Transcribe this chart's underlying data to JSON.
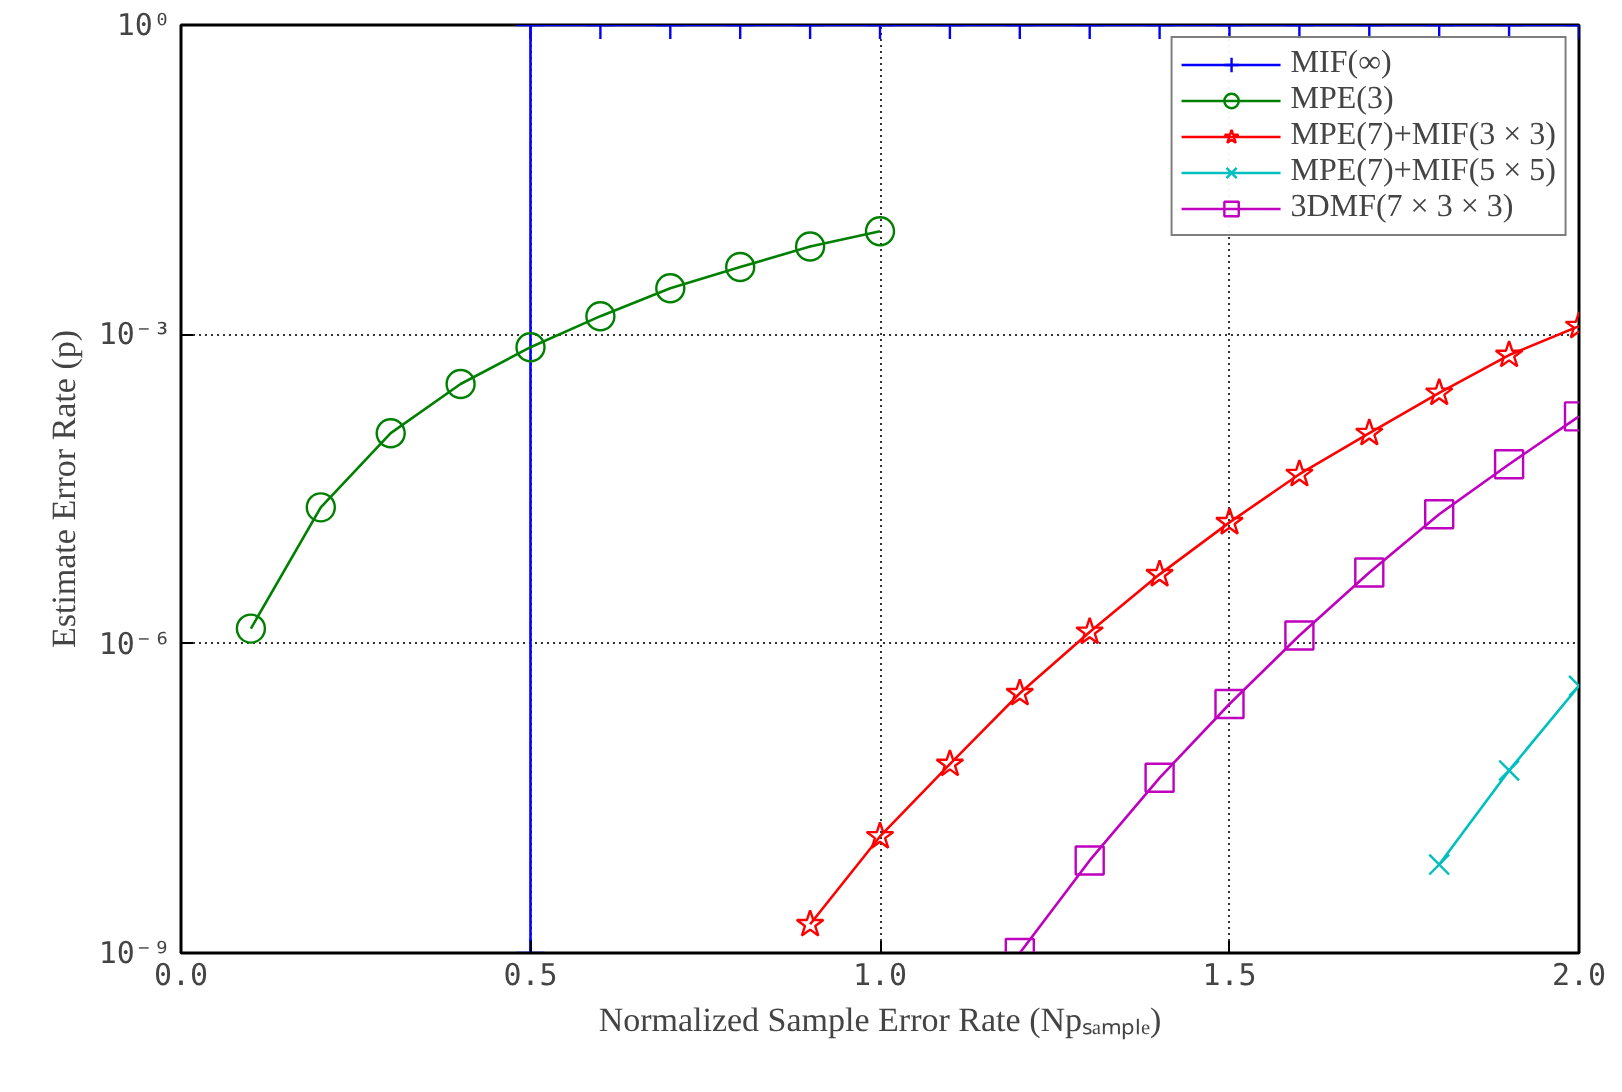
{
  "chart_data": {
    "type": "line",
    "xlabel": "Normalized Sample Error Rate (Npₛₐₘₚₗₑ)",
    "ylabel": "Estimate Error Rate (p)",
    "log": "y",
    "xlim": [
      0.0,
      2.0
    ],
    "ylim": [
      1e-09,
      1
    ],
    "xticks": [
      {
        "value": 0.0,
        "label": "0.0"
      },
      {
        "value": 0.5,
        "label": "0.5"
      },
      {
        "value": 1.0,
        "label": "1.0"
      },
      {
        "value": 1.5,
        "label": "1.5"
      },
      {
        "value": 2.0,
        "label": "2.0"
      }
    ],
    "yticks": [
      {
        "value": 1e-09,
        "label": "10⁻⁹"
      },
      {
        "value": 1e-06,
        "label": "10⁻⁶"
      },
      {
        "value": 0.001,
        "label": "10⁻³"
      },
      {
        "value": 1,
        "label": "10⁰"
      }
    ],
    "grid": true,
    "legend": "top right",
    "line_style": "solid",
    "series": [
      {
        "name": "MIF(∞)",
        "color": "#0000ff",
        "marker": "cross",
        "x": [
          0.5,
          0.5,
          0.6,
          0.7,
          0.8,
          0.9,
          1.0,
          1.1,
          1.2,
          1.3,
          1.4,
          1.5,
          1.6,
          1.7,
          1.8,
          1.9,
          2.0
        ],
        "values": [
          1e-09,
          1,
          1,
          1,
          1,
          1,
          1,
          1,
          1,
          1,
          1,
          1,
          1,
          1,
          1,
          1,
          1
        ]
      },
      {
        "name": "MPE(3)",
        "color": "#008000",
        "marker": "circle",
        "x": [
          0.1,
          0.2,
          0.3,
          0.4,
          0.5,
          0.6,
          0.7,
          0.8,
          0.9,
          1.0
        ],
        "values": [
          1.4e-06,
          2.1e-05,
          0.00011,
          0.00033,
          0.00075,
          0.0015,
          0.0028,
          0.0045,
          0.0071,
          0.01
        ]
      },
      {
        "name": "MPE(7)+MIF(3 × 3)",
        "color": "#ff0000",
        "marker": "star",
        "x": [
          0.9,
          1.0,
          1.1,
          1.2,
          1.3,
          1.4,
          1.5,
          1.6,
          1.7,
          1.8,
          1.9,
          2.0
        ],
        "values": [
          1.9e-09,
          1.35e-08,
          6.8e-08,
          3.3e-07,
          1.3e-06,
          4.7e-06,
          1.5e-05,
          4.4e-05,
          0.00011,
          0.00027,
          0.00063,
          0.0012
        ]
      },
      {
        "name": "MPE(7)+MIF(5 × 5)",
        "color": "#00bfbf",
        "marker": "x",
        "x": [
          1.8,
          1.9,
          2.0
        ],
        "values": [
          7.2e-09,
          5.9e-08,
          3.9e-07
        ]
      },
      {
        "name": "3DMF(7 × 3 × 3)",
        "color": "#bf00bf",
        "marker": "square",
        "x": [
          1.2,
          1.3,
          1.4,
          1.5,
          1.6,
          1.7,
          1.8,
          1.9,
          2.0
        ],
        "values": [
          1e-09,
          7.9e-09,
          5e-08,
          2.6e-07,
          1.2e-06,
          4.9e-06,
          1.8e-05,
          5.5e-05,
          0.00016
        ]
      }
    ]
  }
}
